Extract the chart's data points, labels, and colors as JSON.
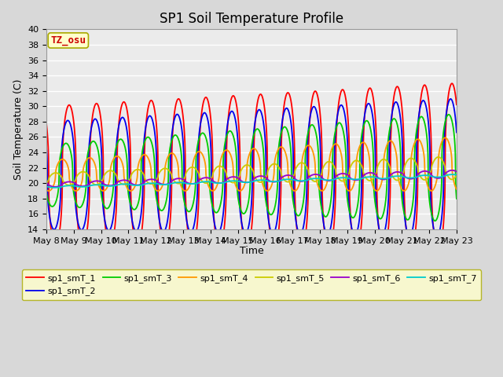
{
  "title": "SP1 Soil Temperature Profile",
  "xlabel": "Time",
  "ylabel": "Soil Temperature (C)",
  "ylim": [
    14,
    40
  ],
  "annotation": "TZ_osu",
  "x_tick_labels": [
    "May 8",
    "May 9",
    "May 10",
    "May 11",
    "May 12",
    "May 13",
    "May 14",
    "May 15",
    "May 16",
    "May 17",
    "May 18",
    "May 19",
    "May 20",
    "May 21",
    "May 22",
    "May 23"
  ],
  "series_colors": [
    "#ff0000",
    "#0000ee",
    "#00cc00",
    "#ff9900",
    "#cccc00",
    "#9900cc",
    "#00cccc"
  ],
  "series_labels": [
    "sp1_smT_1",
    "sp1_smT_2",
    "sp1_smT_3",
    "sp1_smT_4",
    "sp1_smT_5",
    "sp1_smT_6",
    "sp1_smT_7"
  ],
  "bg_color": "#d8d8d8",
  "plot_bg_color": "#ebebeb",
  "legend_bg": "#ffffcc",
  "legend_edge": "#aaaa00",
  "annotation_color": "#cc0000",
  "annotation_bg": "#ffffcc",
  "annotation_edge": "#aaaa00",
  "grid_color": "#ffffff",
  "title_fontsize": 12,
  "label_fontsize": 9,
  "tick_fontsize": 8,
  "legend_fontsize": 8,
  "line_width": 1.3,
  "num_days": 15,
  "ppd": 240
}
